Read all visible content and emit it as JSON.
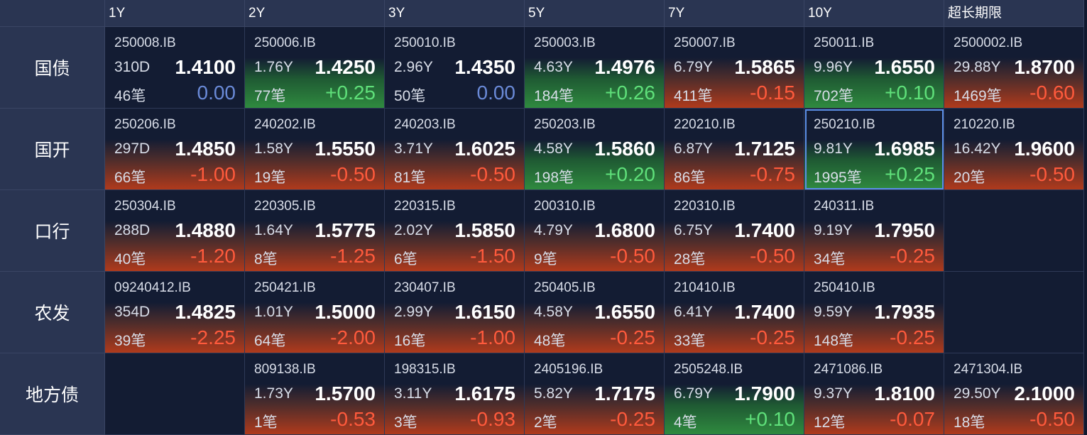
{
  "columns": [
    "1Y",
    "2Y",
    "3Y",
    "5Y",
    "7Y",
    "10Y",
    "超长期限"
  ],
  "rows": [
    {
      "label": "国债",
      "cells": [
        {
          "code": "250008.IB",
          "term": "310D",
          "yield": "1.4100",
          "count": "46笔",
          "change": "0.00",
          "dir": "zero"
        },
        {
          "code": "250006.IB",
          "term": "1.76Y",
          "yield": "1.4250",
          "count": "77笔",
          "change": "+0.25",
          "dir": "pos"
        },
        {
          "code": "250010.IB",
          "term": "2.96Y",
          "yield": "1.4350",
          "count": "50笔",
          "change": "0.00",
          "dir": "zero"
        },
        {
          "code": "250003.IB",
          "term": "4.63Y",
          "yield": "1.4976",
          "count": "184笔",
          "change": "+0.26",
          "dir": "pos"
        },
        {
          "code": "250007.IB",
          "term": "6.79Y",
          "yield": "1.5865",
          "count": "411笔",
          "change": "-0.15",
          "dir": "neg"
        },
        {
          "code": "250011.IB",
          "term": "9.96Y",
          "yield": "1.6550",
          "count": "702笔",
          "change": "+0.10",
          "dir": "pos"
        },
        {
          "code": "2500002.IB",
          "term": "29.88Y",
          "yield": "1.8700",
          "count": "1469笔",
          "change": "-0.60",
          "dir": "neg"
        }
      ]
    },
    {
      "label": "国开",
      "cells": [
        {
          "code": "250206.IB",
          "term": "297D",
          "yield": "1.4850",
          "count": "66笔",
          "change": "-1.00",
          "dir": "neg"
        },
        {
          "code": "240202.IB",
          "term": "1.58Y",
          "yield": "1.5550",
          "count": "19笔",
          "change": "-0.50",
          "dir": "neg"
        },
        {
          "code": "240203.IB",
          "term": "3.71Y",
          "yield": "1.6025",
          "count": "81笔",
          "change": "-0.50",
          "dir": "neg"
        },
        {
          "code": "250203.IB",
          "term": "4.58Y",
          "yield": "1.5860",
          "count": "198笔",
          "change": "+0.20",
          "dir": "pos"
        },
        {
          "code": "220210.IB",
          "term": "6.87Y",
          "yield": "1.7125",
          "count": "86笔",
          "change": "-0.75",
          "dir": "neg"
        },
        {
          "code": "250210.IB",
          "term": "9.81Y",
          "yield": "1.6985",
          "count": "1995笔",
          "change": "+0.25",
          "dir": "pos-sel"
        },
        {
          "code": "210220.IB",
          "term": "16.42Y",
          "yield": "1.9600",
          "count": "20笔",
          "change": "-0.50",
          "dir": "neg"
        }
      ]
    },
    {
      "label": "口行",
      "cells": [
        {
          "code": "250304.IB",
          "term": "288D",
          "yield": "1.4880",
          "count": "40笔",
          "change": "-1.20",
          "dir": "neg"
        },
        {
          "code": "220305.IB",
          "term": "1.64Y",
          "yield": "1.5775",
          "count": "8笔",
          "change": "-1.25",
          "dir": "neg"
        },
        {
          "code": "220315.IB",
          "term": "2.02Y",
          "yield": "1.5850",
          "count": "6笔",
          "change": "-1.50",
          "dir": "neg"
        },
        {
          "code": "200310.IB",
          "term": "4.79Y",
          "yield": "1.6800",
          "count": "9笔",
          "change": "-0.50",
          "dir": "neg"
        },
        {
          "code": "220310.IB",
          "term": "6.75Y",
          "yield": "1.7400",
          "count": "28笔",
          "change": "-0.50",
          "dir": "neg"
        },
        {
          "code": "240311.IB",
          "term": "9.19Y",
          "yield": "1.7950",
          "count": "34笔",
          "change": "-0.25",
          "dir": "neg"
        },
        null
      ]
    },
    {
      "label": "农发",
      "cells": [
        {
          "code": "09240412.IB",
          "term": "354D",
          "yield": "1.4825",
          "count": "39笔",
          "change": "-2.25",
          "dir": "neg"
        },
        {
          "code": "250421.IB",
          "term": "1.01Y",
          "yield": "1.5000",
          "count": "64笔",
          "change": "-2.00",
          "dir": "neg"
        },
        {
          "code": "230407.IB",
          "term": "2.99Y",
          "yield": "1.6150",
          "count": "16笔",
          "change": "-1.00",
          "dir": "neg"
        },
        {
          "code": "250405.IB",
          "term": "4.58Y",
          "yield": "1.6550",
          "count": "48笔",
          "change": "-0.25",
          "dir": "neg"
        },
        {
          "code": "210410.IB",
          "term": "6.41Y",
          "yield": "1.7400",
          "count": "33笔",
          "change": "-0.25",
          "dir": "neg"
        },
        {
          "code": "250410.IB",
          "term": "9.59Y",
          "yield": "1.7935",
          "count": "148笔",
          "change": "-0.25",
          "dir": "neg"
        },
        null
      ]
    },
    {
      "label": "地方债",
      "cells": [
        null,
        {
          "code": "809138.IB",
          "term": "1.73Y",
          "yield": "1.5700",
          "count": "1笔",
          "change": "-0.53",
          "dir": "neg"
        },
        {
          "code": "198315.IB",
          "term": "3.11Y",
          "yield": "1.6175",
          "count": "3笔",
          "change": "-0.93",
          "dir": "neg"
        },
        {
          "code": "2405196.IB",
          "term": "5.82Y",
          "yield": "1.7175",
          "count": "2笔",
          "change": "-0.25",
          "dir": "neg"
        },
        {
          "code": "2505248.IB",
          "term": "6.79Y",
          "yield": "1.7900",
          "count": "4笔",
          "change": "+0.10",
          "dir": "pos"
        },
        {
          "code": "2471086.IB",
          "term": "9.37Y",
          "yield": "1.8100",
          "count": "12笔",
          "change": "-0.07",
          "dir": "neg"
        },
        {
          "code": "2471304.IB",
          "term": "29.50Y",
          "yield": "2.1000",
          "count": "18笔",
          "change": "-0.50",
          "dir": "neg"
        }
      ]
    }
  ]
}
